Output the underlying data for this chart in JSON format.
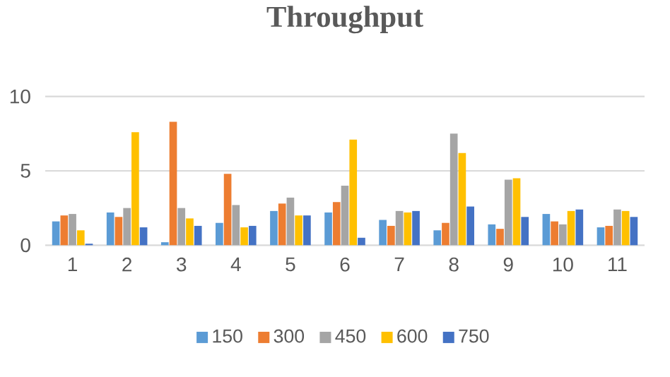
{
  "chart_data": {
    "type": "bar",
    "title": "Throughput",
    "categories": [
      "1",
      "2",
      "3",
      "4",
      "5",
      "6",
      "7",
      "8",
      "9",
      "10",
      "11"
    ],
    "series": [
      {
        "name": "150",
        "color": "#5b9bd5",
        "values": [
          1.6,
          2.2,
          0.2,
          1.5,
          2.3,
          2.2,
          1.7,
          1.0,
          1.4,
          2.1,
          1.2
        ]
      },
      {
        "name": "300",
        "color": "#ed7d31",
        "values": [
          2.0,
          1.9,
          8.3,
          4.8,
          2.8,
          2.9,
          1.3,
          1.5,
          1.1,
          1.6,
          1.3
        ]
      },
      {
        "name": "450",
        "color": "#a5a5a5",
        "values": [
          2.1,
          2.5,
          2.5,
          2.7,
          3.2,
          4.0,
          2.3,
          7.5,
          4.4,
          1.4,
          2.4
        ]
      },
      {
        "name": "600",
        "color": "#ffc000",
        "values": [
          1.0,
          7.6,
          1.8,
          1.2,
          2.0,
          7.1,
          2.2,
          6.2,
          4.5,
          2.3,
          2.3
        ]
      },
      {
        "name": "750",
        "color": "#4472c4",
        "values": [
          0.1,
          1.2,
          1.3,
          1.3,
          2.0,
          0.5,
          2.3,
          2.6,
          1.9,
          2.4,
          1.9
        ]
      }
    ],
    "ylim": [
      0,
      10
    ],
    "yticks": [
      0,
      5,
      10
    ],
    "grid": "y",
    "legend": "bottom"
  }
}
